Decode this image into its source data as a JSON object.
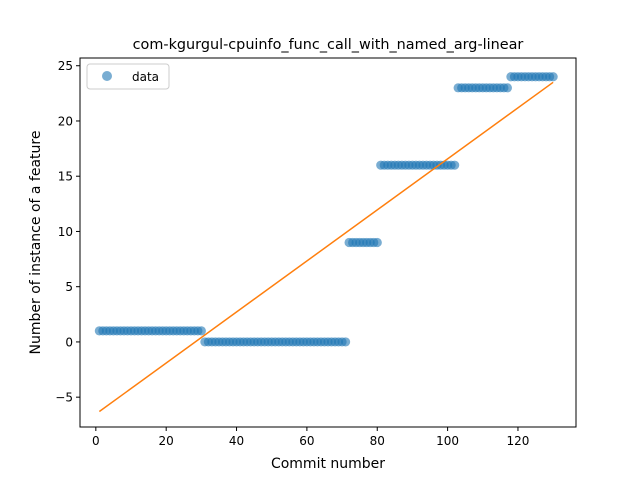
{
  "chart_data": {
    "type": "scatter",
    "title": "com-kgurgul-cpuinfo_func_call_with_named_arg-linear",
    "xlabel": "Commit number",
    "ylabel": "Number of instance of a feature",
    "xlim": [
      -4.5,
      136.5
    ],
    "ylim": [
      -7.7,
      25.7
    ],
    "xticks": [
      0,
      20,
      40,
      60,
      80,
      100,
      120
    ],
    "yticks": [
      -5,
      0,
      5,
      10,
      15,
      20,
      25
    ],
    "legend": {
      "position": "upper-left",
      "entries": [
        "data"
      ]
    },
    "colors": {
      "data": "#1f77b4",
      "fit": "#ff7f0e"
    },
    "series": [
      {
        "name": "data",
        "kind": "scatter",
        "segments": [
          {
            "x_from": 1,
            "x_to": 30,
            "y": 1
          },
          {
            "x_from": 31,
            "x_to": 71,
            "y": 0
          },
          {
            "x_from": 72,
            "x_to": 80,
            "y": 9
          },
          {
            "x_from": 81,
            "x_to": 102,
            "y": 16
          },
          {
            "x_from": 103,
            "x_to": 117,
            "y": 23
          },
          {
            "x_from": 118,
            "x_to": 130,
            "y": 24
          }
        ]
      },
      {
        "kind": "line",
        "x": [
          1,
          130
        ],
        "y": [
          -6.3,
          23.5
        ]
      }
    ]
  }
}
